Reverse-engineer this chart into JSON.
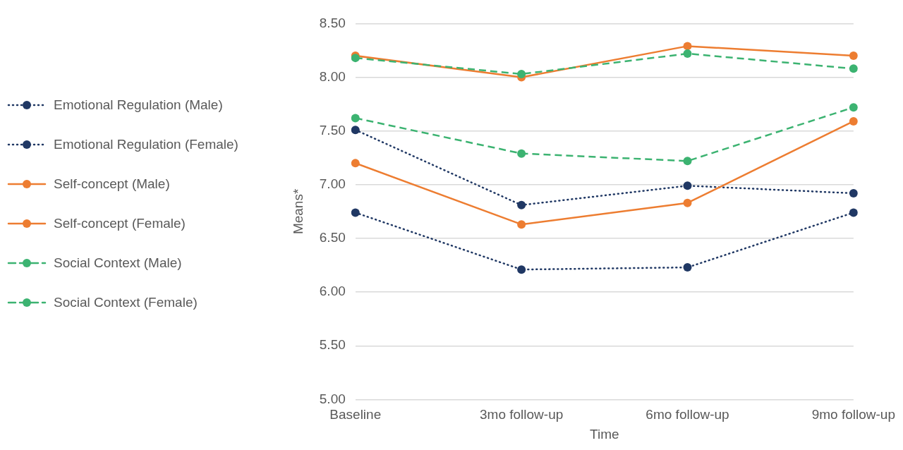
{
  "chart_data": {
    "type": "line",
    "xlabel": "Time",
    "ylabel": "Means*",
    "categories": [
      "Baseline",
      "3mo follow-up",
      "6mo follow-up",
      "9mo follow-up"
    ],
    "series": [
      {
        "name": "Emotional Regulation (Male)",
        "color": "#203864",
        "line_style": "dotted",
        "values": [
          7.51,
          6.81,
          6.99,
          6.92
        ]
      },
      {
        "name": "Emotional Regulation (Female)",
        "color": "#203864",
        "line_style": "dotted",
        "values": [
          6.74,
          6.21,
          6.23,
          6.74
        ]
      },
      {
        "name": "Self-concept (Male)",
        "color": "#ed7d31",
        "line_style": "solid",
        "values": [
          8.2,
          8.0,
          8.29,
          8.2
        ]
      },
      {
        "name": "Self-concept (Female)",
        "color": "#ed7d31",
        "line_style": "solid",
        "values": [
          7.2,
          6.63,
          6.83,
          7.59
        ]
      },
      {
        "name": "Social Context (Male)",
        "color": "#3cb371",
        "line_style": "dashed",
        "values": [
          8.18,
          8.03,
          8.22,
          8.08
        ]
      },
      {
        "name": "Social Context (Female)",
        "color": "#3cb371",
        "line_style": "dashed",
        "values": [
          7.62,
          7.29,
          7.22,
          7.72
        ]
      }
    ],
    "ylim": [
      5,
      8.5
    ],
    "yticks": [
      {
        "value": 5,
        "label": "5.00"
      },
      {
        "value": 5.5,
        "label": "5.50"
      },
      {
        "value": 6,
        "label": "6.00"
      },
      {
        "value": 6.5,
        "label": "6.50"
      },
      {
        "value": 7,
        "label": "7.00"
      },
      {
        "value": 7.5,
        "label": "7.50"
      },
      {
        "value": 8,
        "label": "8.00"
      },
      {
        "value": 8.5,
        "label": "8.50"
      }
    ],
    "grid": "y",
    "legend": "left",
    "marker": "circle"
  }
}
